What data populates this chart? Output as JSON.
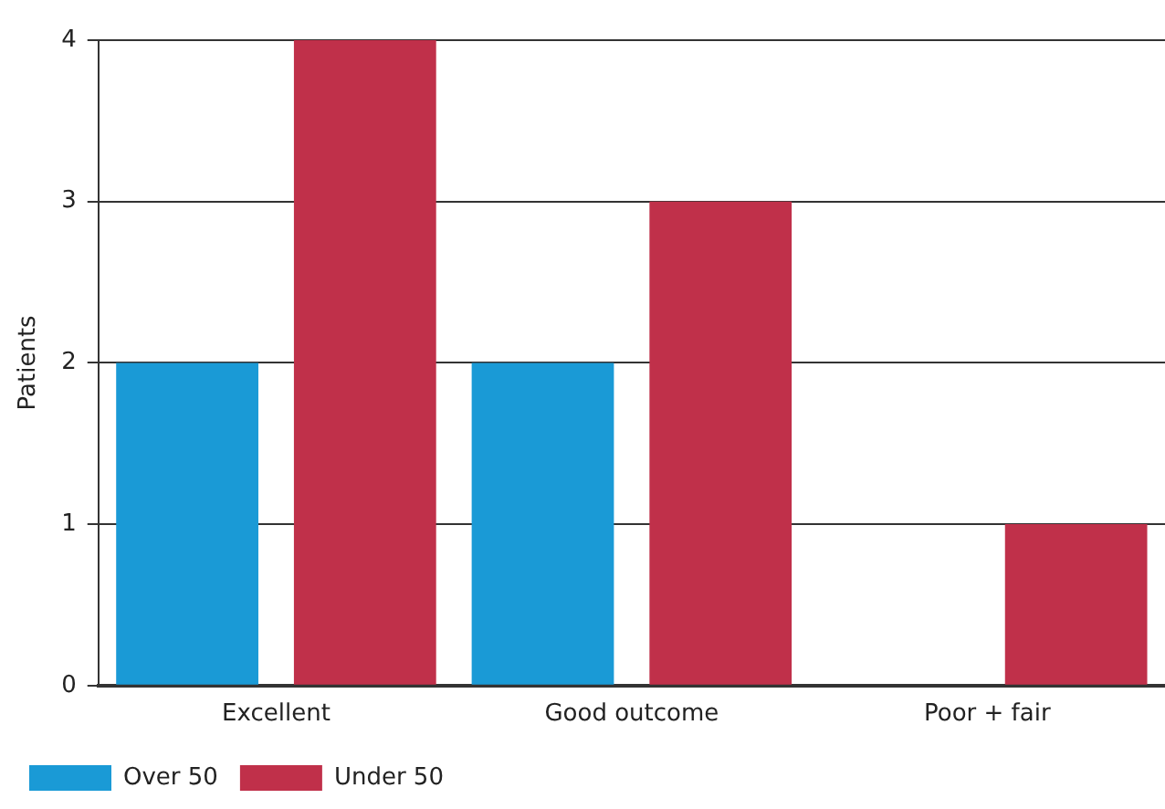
{
  "chart_data": {
    "type": "bar",
    "ylabel": "Patients",
    "categories": [
      "Excellent",
      "Good outcome",
      "Poor + fair"
    ],
    "series": [
      {
        "name": "Over 50",
        "color": "#1a9ad6",
        "values": [
          2,
          2,
          0
        ]
      },
      {
        "name": "Under 50",
        "color": "#c0304a",
        "values": [
          4,
          3,
          1
        ]
      }
    ],
    "ylim": [
      0,
      4
    ],
    "yticks": [
      0,
      1,
      2,
      3,
      4
    ],
    "grid": "y",
    "legend": "bottom left"
  }
}
